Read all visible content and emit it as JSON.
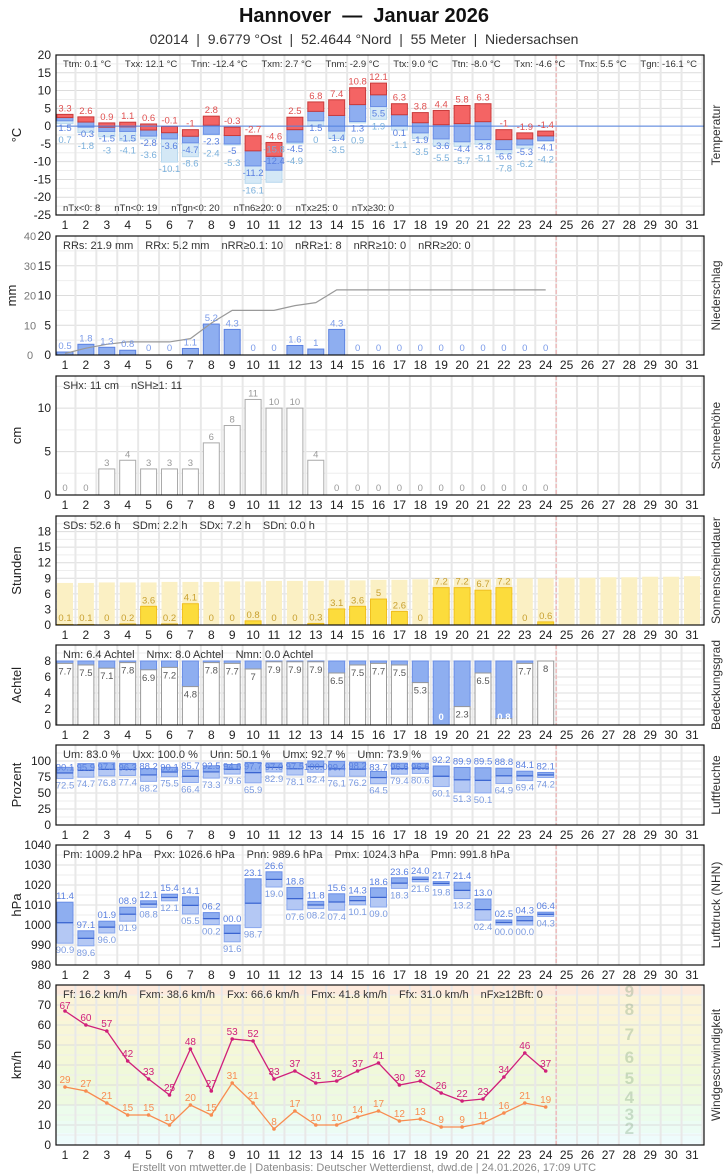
{
  "header": {
    "title": "Hannover  —  Januar 2026",
    "subtitle": "02014  |  9.6779 °Ost  |  52.4644 °Nord  |  55 Meter  |  Niedersachsen"
  },
  "footer": "Erstellt von mtwetter.de | Datenbasis: Deutscher Wetterdienst, dwd.de | 24.01.2026, 17:09 UTC",
  "days": [
    "1",
    "2",
    "3",
    "4",
    "5",
    "6",
    "7",
    "8",
    "9",
    "10",
    "11",
    "12",
    "13",
    "14",
    "15",
    "16",
    "17",
    "18",
    "19",
    "20",
    "21",
    "22",
    "23",
    "24",
    "25",
    "26",
    "27",
    "28",
    "29",
    "30",
    "31"
  ],
  "colors": {
    "tmax": "#f46464",
    "tmin": "#8eaef0",
    "tground": "#d4e8f6",
    "precip": "#8eaef0",
    "sun": "#fcdc3c",
    "sun_possible": "#fbf0c4",
    "cloud": "#8eaef0",
    "gust": "#d0207a",
    "mean_wind": "#f88c50",
    "today_line": "#f0a8a8"
  },
  "chart_data": [
    {
      "type": "bar",
      "title": "Temperatur",
      "ylabel": "°C",
      "ylim": [
        -25,
        20
      ],
      "yticks": [
        "20",
        "15",
        "10",
        "5",
        "0",
        "-5",
        "-10",
        "-15",
        "-20",
        "-25"
      ],
      "stats_top": [
        "Ttm: 0.1 °C",
        "Txx: 12.1 °C",
        "Tnn: -12.4 °C",
        "Txm: 2.7 °C",
        "Tnm: -2.9 °C",
        "Ttx: 9.0 °C",
        "Ttn: -8.0 °C",
        "Txn: -4.6 °C",
        "Tnx: 5.5 °C",
        "Tgn: -16.1 °C"
      ],
      "stats_bottom": [
        "nTx<0: 8",
        "nTn<0: 19",
        "nTgn<0: 20",
        "nTn6≥20: 0",
        "nTx≥25: 0",
        "nTx≥30: 0"
      ],
      "max": [
        3.3,
        2.6,
        0.9,
        1.1,
        0.6,
        -0.1,
        -1.0,
        2.8,
        -0.3,
        -2.7,
        -4.6,
        2.5,
        6.8,
        7.4,
        10.8,
        12.1,
        6.3,
        3.8,
        4.4,
        5.8,
        6.3,
        -1.0,
        -1.9,
        -1.4
      ],
      "min": [
        1.5,
        -0.3,
        -1.5,
        -1.5,
        -2.8,
        -3.6,
        -4.7,
        -2.3,
        -5.0,
        -11.2,
        -12.4,
        -4.5,
        1.5,
        -1.4,
        1.3,
        5.5,
        0.1,
        -1.9,
        -3.6,
        -4.4,
        -3.8,
        -6.6,
        -5.3,
        -4.1
      ],
      "ground_min": [
        0.7,
        -1.8,
        -3.0,
        -4.1,
        -3.6,
        -10.1,
        -8.6,
        -2.4,
        -5.3,
        -16.1,
        -15.8,
        -4.9,
        0.0,
        -3.5,
        0.9,
        1.9,
        -1.1,
        -3.5,
        -5.5,
        -5.7,
        -5.1,
        -7.8,
        -6.2,
        -4.2
      ]
    },
    {
      "type": "bar",
      "title": "Niederschlag",
      "ylabel": "mm",
      "ylim": [
        0,
        20
      ],
      "y2lim": [
        0,
        40
      ],
      "yticks": [
        "20",
        "15",
        "10",
        "5",
        "0"
      ],
      "y2ticks": [
        "40",
        "30",
        "20",
        "10",
        "0"
      ],
      "stats": [
        "RRs: 21.9 mm",
        "RRx: 5.2 mm",
        "nRR≥0.1: 10",
        "nRR≥1: 8",
        "nRR≥10: 0",
        "nRR≥20: 0"
      ],
      "values": [
        0.5,
        1.8,
        1.3,
        0.8,
        0,
        0,
        1.1,
        5.2,
        4.3,
        0,
        0,
        1.6,
        1.0,
        4.3,
        0,
        0,
        0,
        0,
        0,
        0,
        0,
        0,
        0,
        0
      ]
    },
    {
      "type": "bar",
      "title": "Schneehöhe",
      "ylabel": "cm",
      "ylim": [
        0,
        13.7
      ],
      "yticks": [
        "10",
        "5",
        "0"
      ],
      "stats": [
        "SHx: 11 cm",
        "nSH≥1: 11"
      ],
      "values": [
        0,
        0,
        3,
        4,
        3,
        3,
        3,
        6,
        8,
        11,
        10,
        10,
        4,
        0,
        0,
        0,
        0,
        0,
        0,
        0,
        0,
        0,
        0,
        0
      ]
    },
    {
      "type": "bar",
      "title": "Sonnenscheindauer",
      "ylabel": "Stunden",
      "ylim": [
        0,
        21
      ],
      "yticks": [
        "18",
        "15",
        "12",
        "9",
        "6",
        "3",
        "0"
      ],
      "stats": [
        "SDs: 52.6 h",
        "SDm: 2.2 h",
        "SDx: 7.2 h",
        "SDn: 0.0 h"
      ],
      "values": [
        0.1,
        0.1,
        0,
        0.2,
        3.6,
        0.2,
        4.1,
        0,
        0,
        0.8,
        0,
        0,
        0.3,
        3.1,
        3.6,
        5.0,
        2.6,
        0,
        7.2,
        7.2,
        6.7,
        7.2,
        0,
        0.6
      ],
      "possible": [
        8.1,
        8.1,
        8.2,
        8.2,
        8.2,
        8.3,
        8.3,
        8.3,
        8.4,
        8.4,
        8.5,
        8.5,
        8.5,
        8.6,
        8.6,
        8.7,
        8.7,
        8.8,
        8.8,
        8.9,
        8.9,
        9.0,
        9.0,
        9.0,
        9.1,
        9.1,
        9.2,
        9.2,
        9.3,
        9.3,
        9.4
      ]
    },
    {
      "type": "bar",
      "title": "Bedeckungsgrad",
      "ylabel": "Achtel",
      "ylim": [
        0,
        10
      ],
      "yticks": [
        "8",
        "6",
        "4",
        "2",
        "0"
      ],
      "stats": [
        "Nm: 6.4 Achtel",
        "Nmx: 8.0 Achtel",
        "Nmn: 0.0 Achtel"
      ],
      "values": [
        7.7,
        7.5,
        7.1,
        7.8,
        6.9,
        7.2,
        4.8,
        7.8,
        7.7,
        7.0,
        7.9,
        7.9,
        7.9,
        6.5,
        7.5,
        7.7,
        7.5,
        5.3,
        0.0,
        2.3,
        6.5,
        0.8,
        7.7,
        8.0
      ]
    },
    {
      "type": "bar",
      "title": "Luftfeuchte",
      "ylabel": "Prozent",
      "ylim": [
        0,
        125
      ],
      "yticks": [
        "100",
        "75",
        "50",
        "25",
        "0"
      ],
      "stats": [
        "Um: 83.0 %",
        "Uxx: 100.0 %",
        "Unn: 50.1 %",
        "Umx: 92.7 %",
        "Umn: 73.9 %"
      ],
      "max": [
        90.1,
        95.9,
        97.1,
        96.3,
        88.2,
        90.1,
        85.7,
        92.5,
        94.6,
        97.7,
        97.0,
        97.5,
        100.0,
        99.4,
        98.2,
        83.7,
        96.6,
        96.6,
        92.2,
        89.9,
        89.5,
        88.8,
        84.1,
        82.1
      ],
      "min": [
        72.5,
        74.7,
        76.8,
        77.4,
        68.2,
        75.5,
        66.4,
        73.3,
        79.6,
        65.9,
        82.9,
        78.1,
        82.4,
        76.1,
        76.2,
        64.5,
        79.4,
        80.6,
        60.1,
        51.3,
        50.1,
        64.9,
        69.4,
        74.2
      ]
    },
    {
      "type": "bar",
      "title": "Luftdruck (NHN)",
      "ylabel": "hPa",
      "ylim": [
        980,
        1040
      ],
      "yticks": [
        "1040",
        "1030",
        "1020",
        "1010",
        "1000",
        "990",
        "980"
      ],
      "stats": [
        "Pm: 1009.2 hPa",
        "Pxx: 1026.6 hPa",
        "Pnn: 989.6 hPa",
        "Pmx: 1024.3 hPa",
        "Pmn: 991.8 hPa"
      ],
      "max": [
        1011.4,
        997.1,
        1001.9,
        1008.9,
        1012.1,
        1015.4,
        1014.1,
        1006.2,
        1000.0,
        1023.1,
        1026.6,
        1018.8,
        1011.8,
        1015.6,
        1014.3,
        1018.6,
        1023.6,
        1024.0,
        1021.7,
        1021.4,
        1013.0,
        1002.5,
        1004.3,
        1006.4
      ],
      "min": [
        990.9,
        989.6,
        996.0,
        1001.9,
        1008.8,
        1012.1,
        1005.5,
        1000.2,
        991.6,
        998.7,
        1019.0,
        1007.6,
        1008.2,
        1007.4,
        1010.1,
        1009.0,
        1018.3,
        1021.6,
        1019.8,
        1013.2,
        1002.4,
        1000.0,
        1000.0,
        1004.3
      ]
    },
    {
      "type": "line",
      "title": "Windgeschwindigkeit",
      "ylabel": "km/h",
      "ylim": [
        0,
        80
      ],
      "yticks": [
        "80",
        "70",
        "60",
        "50",
        "40",
        "30",
        "20",
        "10",
        "0"
      ],
      "stats": [
        "Ff: 16.2 km/h",
        "Fxm: 38.6 km/h",
        "Fxx: 66.6 km/h",
        "Fmx: 41.8 km/h",
        "Ffx: 31.0 km/h",
        "nFx≥12Bft: 0"
      ],
      "beaufort_labels": [
        "2",
        "3",
        "4",
        "5",
        "6",
        "7",
        "8",
        "9"
      ],
      "gust": [
        67,
        60,
        57,
        42,
        33,
        25,
        48,
        27,
        53,
        52,
        33,
        37,
        31,
        32,
        37,
        41,
        30,
        32,
        26,
        22,
        23,
        34,
        46,
        37
      ],
      "mean": [
        29,
        27,
        21,
        15,
        15,
        10,
        20,
        15,
        31,
        21,
        8,
        17,
        10,
        10,
        14,
        17,
        12,
        13,
        9,
        9,
        11,
        16,
        21,
        19
      ]
    }
  ]
}
